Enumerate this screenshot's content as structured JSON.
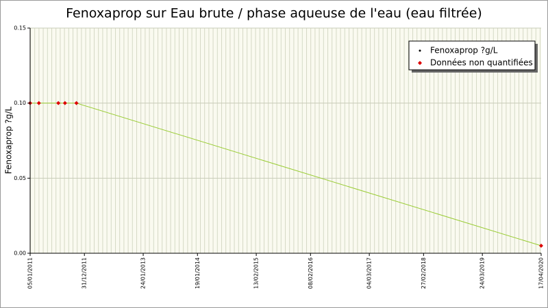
{
  "chart_data": {
    "type": "line",
    "title": "Fenoxaprop sur Eau brute / phase aqueuse de l'eau (eau filtrée)",
    "y_label": "Fenoxaprop ?g/L",
    "x": [
      "05/01/2011",
      "04/03/2011",
      "11/07/2011",
      "24/08/2011",
      "08/11/2011",
      "17/04/2020"
    ],
    "series": [
      {
        "name": "Fenoxaprop ?g/L",
        "color": "#99cc33",
        "values": [
          0.1,
          0.1,
          0.1,
          0.1,
          0.1,
          0.005
        ]
      },
      {
        "name": "Données non quantifiées",
        "color": "#dd0000",
        "values": [
          0.1,
          0.1,
          0.1,
          0.1,
          0.1,
          0.005
        ]
      }
    ],
    "xlim": [
      "05/01/2011",
      "17/04/2020"
    ],
    "xticks": [
      "05/01/2011",
      "31/12/2011",
      "24/01/2013",
      "19/01/2014",
      "13/02/2015",
      "08/02/2016",
      "04/03/2017",
      "27/02/2018",
      "24/03/2019",
      "17/04/2020"
    ],
    "ylim": [
      0,
      0.15
    ],
    "yticks": [
      {
        "value": 0,
        "label": "0.00"
      },
      {
        "value": 0.05,
        "label": "0.05"
      },
      {
        "value": 0.1,
        "label": "0.10"
      },
      {
        "value": 0.15,
        "label": "0.15"
      }
    ],
    "grid": true,
    "legend": "upper right"
  }
}
